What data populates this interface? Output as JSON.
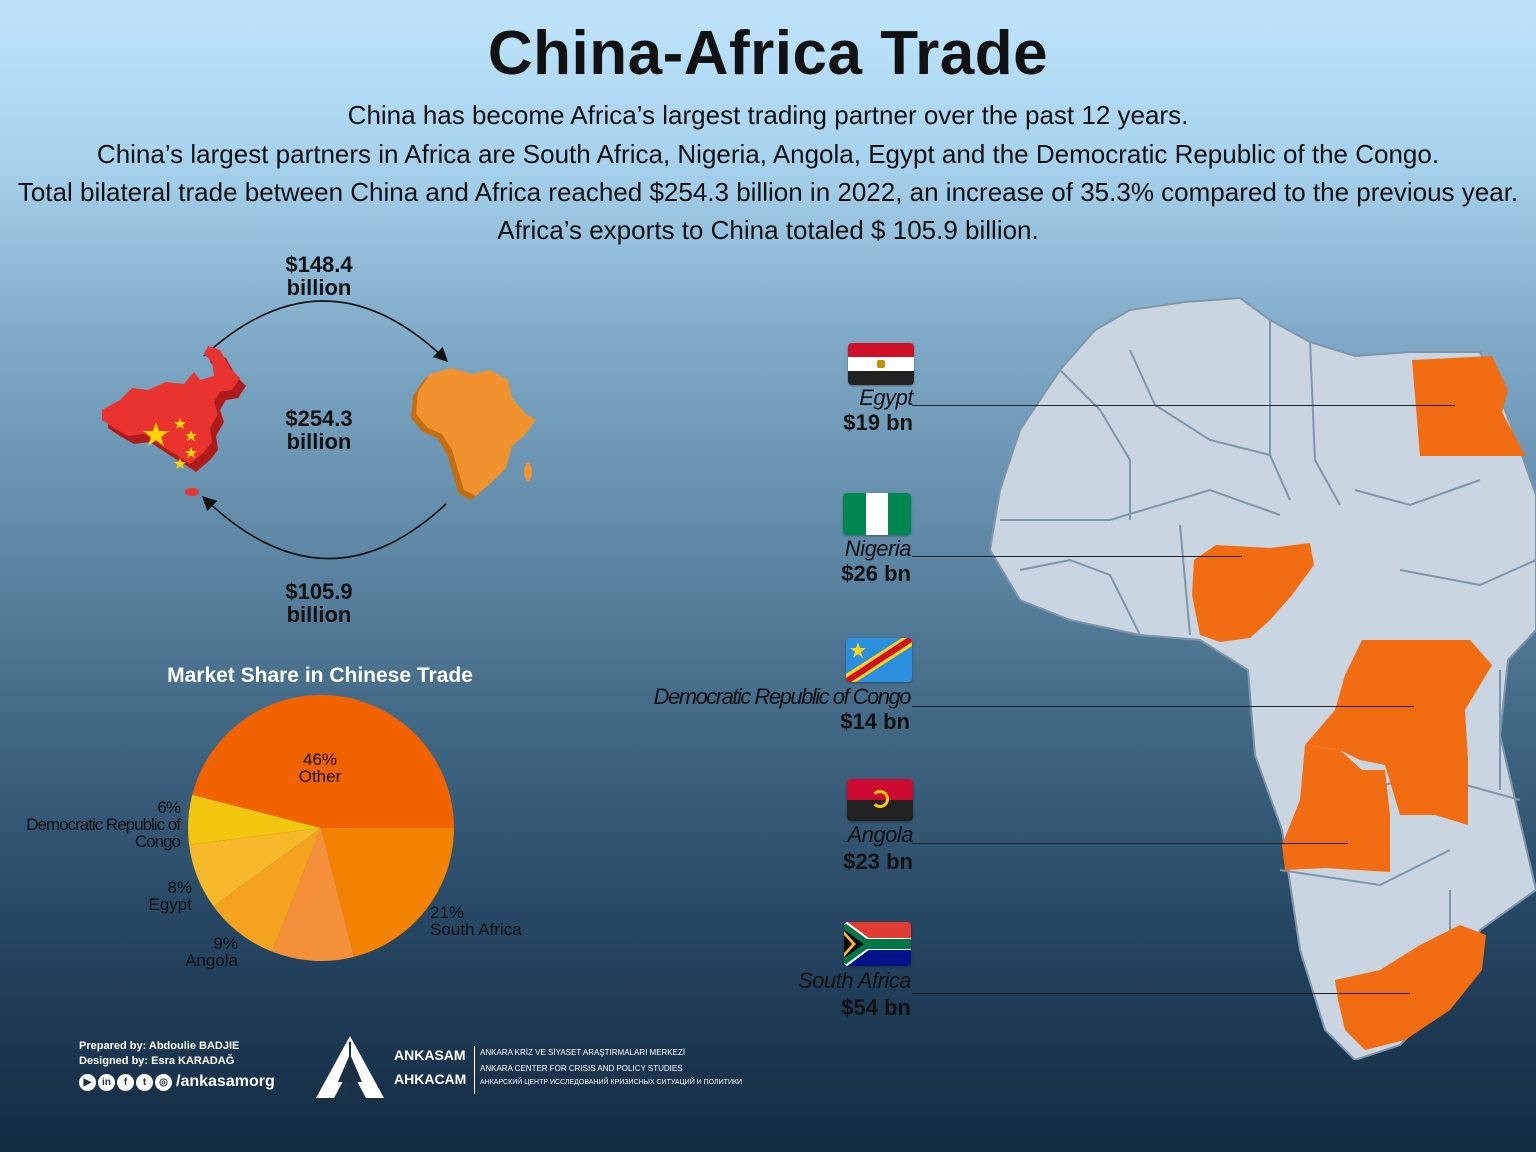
{
  "header": {
    "title": "China-Africa Trade",
    "lines": [
      "China has become Africa’s largest trading partner over the past 12 years.",
      "China’s largest partners in Africa are South Africa, Nigeria, Angola, Egypt and the Democratic Republic of the Congo.",
      "Total bilateral trade between China and Africa reached $254.3 billion in 2022, an increase of 35.3% compared to the previous year.",
      "Africa’s exports to China totaled $ 105.9 billion."
    ]
  },
  "flows": {
    "china_to_africa": "$148.4\nbillion",
    "total": "$254.3\nbillion",
    "africa_to_china": "$105.9\nbillion"
  },
  "chart_data": {
    "type": "pie",
    "title": "Market Share in Chinese Trade",
    "slices": [
      {
        "label": "Other",
        "value": 46,
        "pct_label": "46%",
        "color": "#f26300"
      },
      {
        "label": "South Africa",
        "value": 21,
        "pct_label": "21%",
        "color": "#f28200"
      },
      {
        "label": "",
        "value": 10,
        "pct_label": "",
        "color": "#f5903a"
      },
      {
        "label": "Angola",
        "value": 9,
        "pct_label": "9%",
        "color": "#f5a21e"
      },
      {
        "label": "Egypt",
        "value": 8,
        "pct_label": "8%",
        "color": "#f6b92a"
      },
      {
        "label": "Democratic Republic of Congo",
        "value": 6,
        "pct_label": "6%",
        "color": "#f2c50f"
      }
    ]
  },
  "pie_labels": {
    "other_pct": "46%",
    "other": "Other",
    "sa_pct": "21%",
    "sa": "South Africa",
    "angola_pct": "9%",
    "angola": "Angola",
    "egypt_pct": "8%",
    "egypt": "Egypt",
    "drc_pct": "6%",
    "drc_1": "Democratic Republic of",
    "drc_2": "Congo"
  },
  "countries": [
    {
      "name": "Egypt",
      "value": "$19 bn"
    },
    {
      "name": "Nigeria",
      "value": "$26 bn"
    },
    {
      "name": "Democratic Republic of Congo",
      "value": "$14 bn"
    },
    {
      "name": "Angola",
      "value": "$23 bn"
    },
    {
      "name": "South Africa",
      "value": "$54 bn"
    }
  ],
  "colors": {
    "highlight": "#f26c12",
    "map_land": "#c9d6e1",
    "map_border": "#7f96aa",
    "china_red": "#e8332f",
    "africa_orange": "#f0922e"
  },
  "footer": {
    "prepared": "Prepared by: Abdoulie BADJIE",
    "designed": "Designed by: Esra KARADAĞ",
    "handle": "/ankasamorg",
    "brand_1": "ANKASAM",
    "brand_2": "AHKACAM",
    "org_1": "ANKARA KRİZ VE SİYASET ARAŞTIRMALARI MERKEZİ",
    "org_2": "ANKARA CENTER FOR CRISIS AND POLICY STUDIES",
    "org_3": "АНКАРСКИЙ ЦЕНТР ИССЛЕДОВАНИЙ КРИЗИСНЫХ СИТУАЦИЙ И ПОЛИТИКИ",
    "social_icons": [
      "youtube-icon",
      "linkedin-icon",
      "facebook-icon",
      "twitter-icon",
      "instagram-icon"
    ]
  }
}
